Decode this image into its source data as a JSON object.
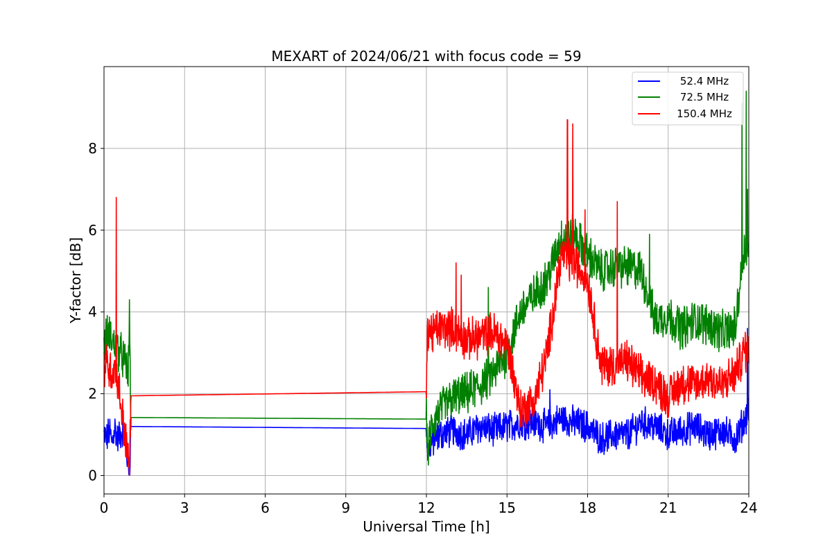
{
  "chart_data": {
    "type": "line",
    "title": "MEXART of 2024/06/21 with focus code = 59",
    "xlabel": "Universal Time [h]",
    "ylabel": "Y-factor [dB]",
    "xlim": [
      0,
      24
    ],
    "ylim": [
      -0.45,
      10.0
    ],
    "xticks": [
      0,
      3,
      6,
      9,
      12,
      15,
      18,
      21,
      24
    ],
    "yticks": [
      0,
      2,
      4,
      6,
      8
    ],
    "grid": true,
    "legend_position": "upper right",
    "series": [
      {
        "name": "52.4 MHz",
        "color": "#0000ff",
        "x": [
          0,
          0.1,
          0.2,
          0.3,
          0.4,
          0.5,
          0.6,
          0.7,
          0.8,
          0.9,
          0.95,
          1.0,
          12.0,
          12.05,
          12.2,
          12.5,
          13.0,
          13.5,
          14.0,
          14.5,
          15.0,
          15.5,
          16.0,
          16.5,
          17.0,
          17.5,
          18.0,
          18.5,
          19.0,
          19.5,
          20.0,
          20.5,
          21.0,
          21.5,
          22.0,
          22.5,
          23.0,
          23.5,
          23.8,
          24.0
        ],
        "y": [
          1.0,
          0.9,
          1.1,
          0.8,
          1.2,
          0.9,
          1.0,
          1.1,
          0.8,
          0.3,
          0.1,
          1.2,
          1.15,
          0.6,
          0.8,
          1.0,
          1.1,
          1.0,
          1.2,
          1.1,
          1.2,
          1.3,
          1.3,
          1.2,
          1.4,
          1.3,
          1.2,
          0.9,
          1.0,
          1.0,
          1.3,
          1.2,
          1.0,
          1.1,
          1.2,
          1.0,
          1.1,
          0.9,
          1.3,
          1.6
        ],
        "noise": 0.35
      },
      {
        "name": "72.5 MHz",
        "color": "#008000",
        "x": [
          0,
          0.1,
          0.2,
          0.3,
          0.4,
          0.5,
          0.6,
          0.7,
          0.8,
          0.9,
          0.95,
          1.0,
          12.0,
          12.05,
          12.2,
          12.5,
          13.0,
          13.5,
          14.0,
          14.5,
          15.0,
          15.5,
          16.0,
          16.5,
          17.0,
          17.5,
          18.0,
          18.5,
          19.0,
          19.5,
          20.0,
          20.5,
          21.0,
          21.5,
          22.0,
          22.5,
          23.0,
          23.5,
          23.8,
          24.0
        ],
        "y": [
          3.2,
          3.4,
          3.5,
          3.3,
          3.2,
          3.1,
          3.0,
          2.9,
          2.7,
          2.5,
          3.5,
          1.42,
          1.38,
          0.6,
          1.2,
          1.6,
          1.9,
          2.0,
          2.2,
          2.5,
          3.0,
          4.0,
          4.4,
          4.8,
          5.8,
          5.9,
          5.4,
          5.0,
          5.1,
          5.1,
          5.0,
          3.8,
          3.9,
          3.6,
          3.8,
          3.7,
          3.5,
          3.6,
          5.5,
          5.5
        ],
        "noise": 0.45
      },
      {
        "name": "150.4 MHz",
        "color": "#ff0000",
        "x": [
          0,
          0.1,
          0.2,
          0.3,
          0.4,
          0.5,
          0.6,
          0.7,
          0.8,
          0.9,
          0.95,
          1.0,
          12.0,
          12.05,
          12.2,
          12.5,
          13.0,
          13.5,
          14.0,
          14.5,
          15.0,
          15.5,
          16.0,
          16.5,
          17.0,
          17.5,
          18.0,
          18.5,
          19.0,
          19.5,
          20.0,
          20.5,
          21.0,
          21.5,
          22.0,
          22.5,
          23.0,
          23.5,
          23.8,
          24.0
        ],
        "y": [
          2.7,
          2.8,
          2.6,
          2.5,
          2.7,
          2.4,
          1.9,
          1.4,
          0.9,
          0.4,
          0.1,
          1.95,
          2.05,
          3.6,
          3.5,
          3.6,
          3.6,
          3.3,
          3.4,
          3.5,
          3.2,
          1.6,
          1.8,
          3.0,
          5.4,
          5.2,
          4.8,
          2.7,
          2.7,
          2.8,
          2.4,
          2.3,
          1.9,
          2.3,
          2.2,
          2.4,
          2.2,
          2.5,
          3.0,
          3.1
        ],
        "noise": 0.45
      }
    ],
    "spikes": [
      {
        "series": 2,
        "x": 0.46,
        "y": 6.8
      },
      {
        "series": 2,
        "x": 13.1,
        "y": 5.2
      },
      {
        "series": 2,
        "x": 13.3,
        "y": 4.9
      },
      {
        "series": 2,
        "x": 17.25,
        "y": 8.7
      },
      {
        "series": 2,
        "x": 17.45,
        "y": 8.6
      },
      {
        "series": 2,
        "x": 17.9,
        "y": 6.5
      },
      {
        "series": 2,
        "x": 19.1,
        "y": 6.7
      },
      {
        "series": 1,
        "x": 0.95,
        "y": 4.3
      },
      {
        "series": 1,
        "x": 14.3,
        "y": 4.6
      },
      {
        "series": 1,
        "x": 20.3,
        "y": 5.9
      },
      {
        "series": 1,
        "x": 23.75,
        "y": 9.1
      },
      {
        "series": 1,
        "x": 23.9,
        "y": 9.4
      },
      {
        "series": 1,
        "x": 23.95,
        "y": 7.0
      },
      {
        "series": 0,
        "x": 16.6,
        "y": 2.1
      },
      {
        "series": 0,
        "x": 23.95,
        "y": 3.6
      }
    ]
  }
}
